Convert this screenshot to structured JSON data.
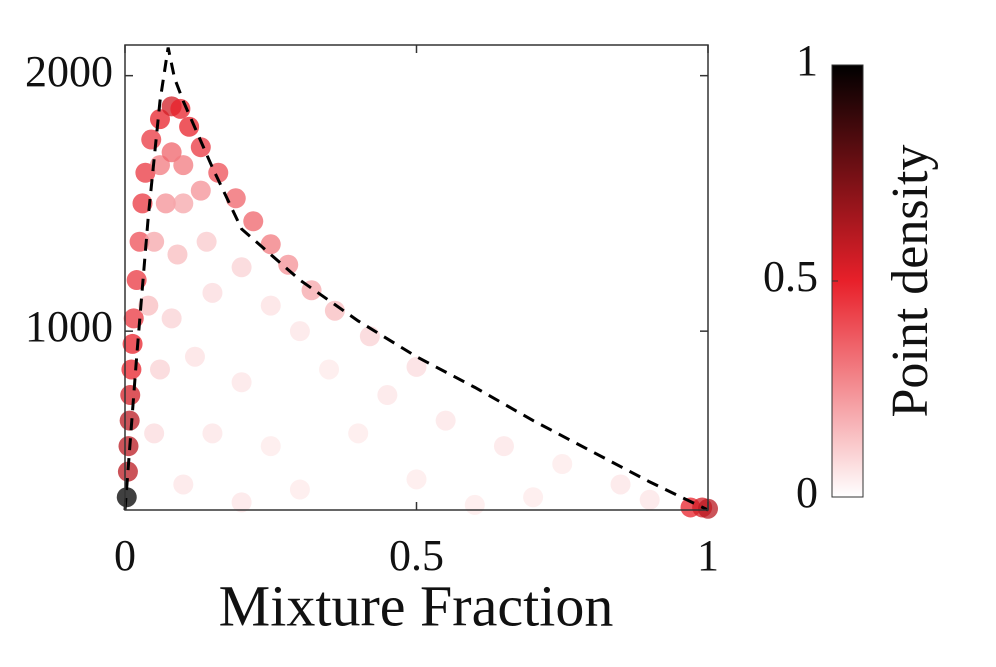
{
  "chart_data": {
    "type": "scatter",
    "xlabel": "Mixture Fraction",
    "xlim": [
      0,
      1
    ],
    "xticks": [
      0,
      0.5,
      1
    ],
    "ylim": [
      300,
      2120
    ],
    "yticks": [
      1000,
      2000
    ],
    "x": [
      0.003,
      0.005,
      0.006,
      0.008,
      0.009,
      0.011,
      0.013,
      0.015,
      0.02,
      0.025,
      0.03,
      0.035,
      0.045,
      0.06,
      0.08,
      0.095,
      0.11,
      0.13,
      0.16,
      0.19,
      0.22,
      0.25,
      0.28,
      0.32,
      0.36,
      0.42,
      0.5,
      0.97,
      0.99,
      1.0,
      0.06,
      0.08,
      0.1,
      0.07,
      0.1,
      0.13,
      0.05,
      0.09,
      0.14,
      0.04,
      0.08,
      0.15,
      0.2,
      0.25,
      0.3,
      0.06,
      0.12,
      0.2,
      0.35,
      0.45,
      0.05,
      0.15,
      0.25,
      0.4,
      0.55,
      0.65,
      0.75,
      0.85,
      0.1,
      0.3,
      0.5,
      0.7,
      0.9,
      0.2,
      0.6
    ],
    "values": [
      350,
      450,
      550,
      650,
      750,
      850,
      950,
      1050,
      1200,
      1350,
      1500,
      1620,
      1750,
      1830,
      1880,
      1870,
      1800,
      1720,
      1620,
      1520,
      1430,
      1340,
      1260,
      1160,
      1080,
      980,
      860,
      310,
      310,
      305,
      1650,
      1700,
      1650,
      1500,
      1500,
      1550,
      1350,
      1300,
      1350,
      1100,
      1050,
      1150,
      1250,
      1100,
      1000,
      850,
      900,
      800,
      850,
      750,
      600,
      600,
      550,
      600,
      650,
      550,
      480,
      400,
      400,
      380,
      420,
      350,
      340,
      330,
      320
    ],
    "density": [
      1.0,
      0.6,
      0.6,
      0.6,
      0.55,
      0.5,
      0.5,
      0.45,
      0.45,
      0.4,
      0.45,
      0.45,
      0.45,
      0.5,
      0.55,
      0.5,
      0.5,
      0.45,
      0.4,
      0.35,
      0.35,
      0.3,
      0.25,
      0.2,
      0.15,
      0.1,
      0.08,
      0.5,
      0.55,
      0.6,
      0.3,
      0.35,
      0.3,
      0.25,
      0.2,
      0.25,
      0.2,
      0.15,
      0.12,
      0.15,
      0.1,
      0.08,
      0.1,
      0.07,
      0.06,
      0.1,
      0.07,
      0.06,
      0.05,
      0.06,
      0.08,
      0.06,
      0.05,
      0.05,
      0.06,
      0.06,
      0.05,
      0.06,
      0.06,
      0.05,
      0.05,
      0.05,
      0.06,
      0.06,
      0.05
    ],
    "curve": {
      "color": "#000000",
      "dashed": true,
      "x": [
        0,
        0.02,
        0.04,
        0.06,
        0.074,
        0.085,
        0.1,
        0.15,
        0.2,
        0.3,
        0.4,
        0.5,
        0.6,
        0.7,
        0.8,
        0.9,
        1
      ],
      "values": [
        300,
        900,
        1450,
        1900,
        2110,
        1990,
        1900,
        1640,
        1400,
        1200,
        1040,
        900,
        780,
        650,
        530,
        410,
        300
      ]
    },
    "colorbar": {
      "label": "Point density",
      "colors": [
        "#ffffff",
        "#e8202a",
        "#000000"
      ],
      "lim": [
        0,
        1
      ],
      "ticks": [
        0,
        0.5,
        1
      ]
    }
  }
}
